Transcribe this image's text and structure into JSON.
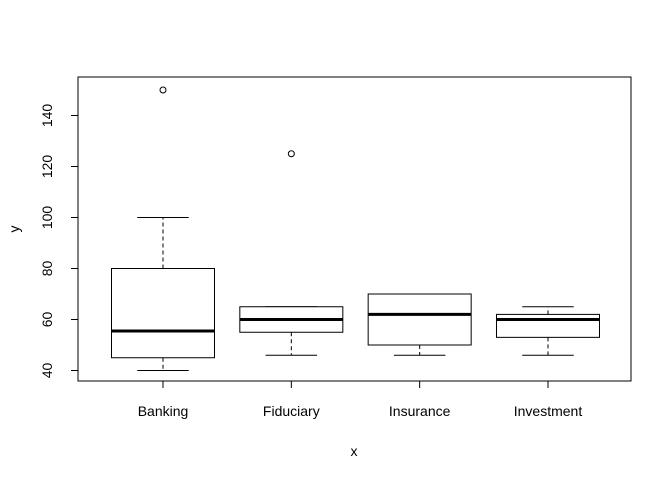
{
  "chart_data": {
    "type": "boxplot",
    "xlabel": "x",
    "ylabel": "y",
    "categories": [
      "Banking",
      "Fiduciary",
      "Insurance",
      "Investment"
    ],
    "boxes": [
      {
        "category": "Banking",
        "whisker_low": 40,
        "q1": 45,
        "median": 55.5,
        "q3": 80,
        "whisker_high": 100,
        "outliers": [
          150
        ]
      },
      {
        "category": "Fiduciary",
        "whisker_low": 46,
        "q1": 55,
        "median": 60,
        "q3": 65,
        "whisker_high": 65,
        "outliers": [
          125
        ]
      },
      {
        "category": "Insurance",
        "whisker_low": 46,
        "q1": 50,
        "median": 62,
        "q3": 70,
        "whisker_high": 70,
        "outliers": []
      },
      {
        "category": "Investment",
        "whisker_low": 46,
        "q1": 53,
        "median": 60,
        "q3": 62,
        "whisker_high": 65,
        "outliers": []
      }
    ],
    "ylim": [
      35,
      155
    ],
    "yticks": [
      40,
      60,
      80,
      100,
      120,
      140
    ],
    "grid": false,
    "legend": "none"
  }
}
